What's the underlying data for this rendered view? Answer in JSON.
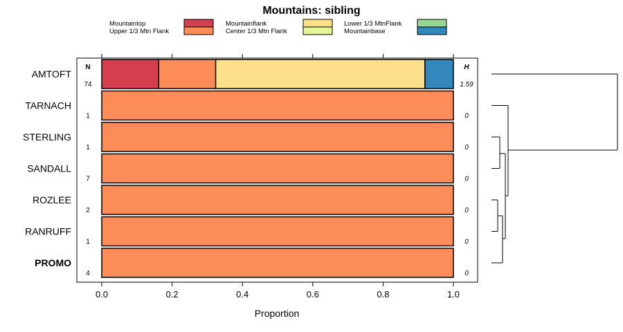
{
  "chart_data": {
    "type": "bar",
    "stacked": true,
    "horizontal": true,
    "title": "Mountains: sibling",
    "xlabel": "Proportion",
    "ylabel": "",
    "xlim": [
      -0.05,
      1.05
    ],
    "xticks": [
      0,
      0.2,
      0.4,
      0.6,
      0.8,
      1
    ],
    "xtick_labels": [
      "0.0",
      "0.2",
      "0.4",
      "0.6",
      "0.8",
      "1.0"
    ],
    "n_header": "N",
    "h_header": "H",
    "legend": [
      {
        "name": "Mountaintop",
        "color": "#d53e4f"
      },
      {
        "name": "Upper 1/3 Mtn Flank",
        "color": "#fc8d59"
      },
      {
        "name": "Mountainflank",
        "color": "#fee08b"
      },
      {
        "name": "Center 1/3 Mtn Flank",
        "color": "#e6f598"
      },
      {
        "name": "Lower 1/3 MtnFlank",
        "color": "#99d594"
      },
      {
        "name": "Mountainbase",
        "color": "#3288bd"
      }
    ],
    "rows": [
      {
        "label": "AMTOFT",
        "bold": false,
        "n": "74",
        "h": "1.59",
        "values": [
          0.162,
          0.162,
          0.595,
          0,
          0,
          0.081
        ]
      },
      {
        "label": "TARNACH",
        "bold": false,
        "n": "1",
        "h": "0",
        "values": [
          0,
          1,
          0,
          0,
          0,
          0
        ]
      },
      {
        "label": "STERLING",
        "bold": false,
        "n": "1",
        "h": "0",
        "values": [
          0,
          1,
          0,
          0,
          0,
          0
        ]
      },
      {
        "label": "SANDALL",
        "bold": false,
        "n": "7",
        "h": "0",
        "values": [
          0,
          1,
          0,
          0,
          0,
          0
        ]
      },
      {
        "label": "ROZLEE",
        "bold": false,
        "n": "2",
        "h": "0",
        "values": [
          0,
          1,
          0,
          0,
          0,
          0
        ]
      },
      {
        "label": "RANRUFF",
        "bold": false,
        "n": "1",
        "h": "0",
        "values": [
          0,
          1,
          0,
          0,
          0,
          0
        ]
      },
      {
        "label": "PROMO",
        "bold": true,
        "n": "4",
        "h": "0",
        "values": [
          0,
          1,
          0,
          0,
          0,
          0
        ]
      }
    ]
  }
}
